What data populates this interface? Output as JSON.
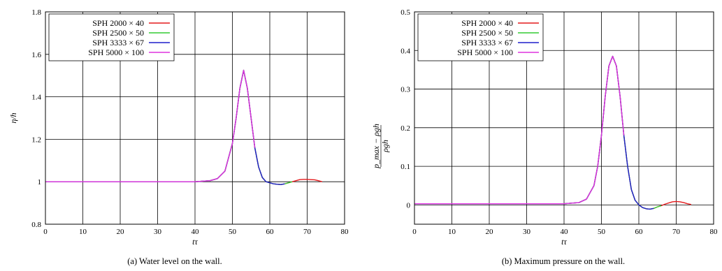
{
  "chart_data": [
    {
      "type": "line",
      "caption": "(a) Water level on the wall.",
      "xlabel": "tτ",
      "ylabel": "η/h",
      "xlim": [
        0,
        80
      ],
      "ylim": [
        0.8,
        1.8
      ],
      "x_ticks": [
        0,
        10,
        20,
        30,
        40,
        50,
        60,
        70,
        80
      ],
      "y_ticks": [
        0.8,
        1,
        1.2,
        1.4,
        1.6,
        1.8
      ],
      "y_tick_labels": [
        "0.8",
        "1",
        "1.2",
        "1.4",
        "1.6",
        "1.8"
      ],
      "grid": true,
      "legend_position": "top-left",
      "series": [
        {
          "name": "SPH 2000 × 40",
          "color": "#e41a1c",
          "x": [
            0,
            5,
            10,
            20,
            30,
            40,
            44,
            46,
            48,
            50,
            51,
            52,
            53,
            54,
            55,
            56,
            57,
            58,
            59,
            60,
            61,
            62,
            63,
            64,
            65,
            66,
            67,
            68,
            69,
            70,
            71,
            72,
            73,
            74
          ],
          "y": [
            1.0,
            1.0,
            1.0,
            1.0,
            1.0,
            1.0,
            1.005,
            1.015,
            1.05,
            1.18,
            1.3,
            1.44,
            1.525,
            1.44,
            1.3,
            1.16,
            1.07,
            1.02,
            1.0,
            0.995,
            0.99,
            0.988,
            0.987,
            0.99,
            0.995,
            1.0,
            1.005,
            1.01,
            1.011,
            1.011,
            1.01,
            1.009,
            1.005,
            1.0
          ]
        },
        {
          "name": "SPH 2500 × 50",
          "color": "#33cc33",
          "x": [
            0,
            5,
            10,
            20,
            30,
            40,
            44,
            46,
            48,
            50,
            51,
            52,
            53,
            54,
            55,
            56,
            57,
            58,
            59,
            60,
            61,
            62,
            63,
            64,
            65,
            66
          ],
          "y": [
            1.0,
            1.0,
            1.0,
            1.0,
            1.0,
            1.0,
            1.005,
            1.015,
            1.05,
            1.18,
            1.3,
            1.44,
            1.525,
            1.44,
            1.3,
            1.16,
            1.07,
            1.02,
            1.0,
            0.995,
            0.99,
            0.988,
            0.987,
            0.99,
            0.995,
            1.0
          ]
        },
        {
          "name": "SPH 3333 × 67",
          "color": "#1f1fcc",
          "x": [
            0,
            5,
            10,
            20,
            30,
            40,
            44,
            46,
            48,
            50,
            51,
            52,
            53,
            54,
            55,
            56,
            57,
            58,
            59,
            60,
            61,
            62,
            63,
            64
          ],
          "y": [
            1.0,
            1.0,
            1.0,
            1.0,
            1.0,
            1.0,
            1.005,
            1.015,
            1.05,
            1.18,
            1.3,
            1.44,
            1.525,
            1.44,
            1.3,
            1.16,
            1.07,
            1.02,
            1.0,
            0.995,
            0.99,
            0.988,
            0.987,
            0.99
          ]
        },
        {
          "name": "SPH 5000 × 100",
          "color": "#dd33dd",
          "x": [
            0,
            5,
            10,
            20,
            30,
            40,
            44,
            46,
            48,
            50,
            51,
            52,
            53,
            54,
            55,
            56
          ],
          "y": [
            1.0,
            1.0,
            1.0,
            1.0,
            1.0,
            1.0,
            1.005,
            1.015,
            1.05,
            1.18,
            1.3,
            1.44,
            1.525,
            1.44,
            1.3,
            1.16
          ]
        }
      ]
    },
    {
      "type": "line",
      "caption": "(b) Maximum pressure on the wall.",
      "xlabel": "tτ",
      "ylabel": "(p_max − ρgh)/ρgh",
      "ylabel_num": "p_max − ρgh",
      "ylabel_den": "ρgh",
      "xlim": [
        0,
        80
      ],
      "ylim": [
        -0.05,
        0.5
      ],
      "x_ticks": [
        0,
        10,
        20,
        30,
        40,
        50,
        60,
        70,
        80
      ],
      "y_ticks": [
        0,
        0.1,
        0.2,
        0.3,
        0.4,
        0.5
      ],
      "y_tick_labels": [
        "0",
        "0.1",
        "0.2",
        "0.3",
        "0.4",
        "0.5"
      ],
      "grid": true,
      "legend_position": "top-left",
      "series": [
        {
          "name": "SPH 2000 × 40",
          "color": "#e41a1c",
          "x": [
            0,
            10,
            20,
            30,
            40,
            44,
            46,
            48,
            49,
            50,
            51,
            52,
            53,
            54,
            55,
            56,
            57,
            58,
            59,
            60,
            61,
            62,
            63,
            64,
            65,
            66,
            67,
            68,
            69,
            70,
            71,
            72,
            73,
            74
          ],
          "y": [
            0.003,
            0.003,
            0.003,
            0.003,
            0.003,
            0.006,
            0.015,
            0.05,
            0.1,
            0.18,
            0.28,
            0.36,
            0.385,
            0.36,
            0.28,
            0.18,
            0.1,
            0.04,
            0.012,
            0.0,
            -0.007,
            -0.01,
            -0.011,
            -0.009,
            -0.005,
            -0.002,
            0.002,
            0.005,
            0.008,
            0.009,
            0.008,
            0.006,
            0.003,
            0.001
          ]
        },
        {
          "name": "SPH 2500 × 50",
          "color": "#33cc33",
          "x": [
            0,
            10,
            20,
            30,
            40,
            44,
            46,
            48,
            49,
            50,
            51,
            52,
            53,
            54,
            55,
            56,
            57,
            58,
            59,
            60,
            61,
            62,
            63,
            64,
            65,
            66
          ],
          "y": [
            0.003,
            0.003,
            0.003,
            0.003,
            0.003,
            0.006,
            0.015,
            0.05,
            0.1,
            0.18,
            0.28,
            0.36,
            0.385,
            0.36,
            0.28,
            0.18,
            0.1,
            0.04,
            0.012,
            0.0,
            -0.007,
            -0.01,
            -0.011,
            -0.009,
            -0.005,
            -0.002
          ]
        },
        {
          "name": "SPH 3333 × 67",
          "color": "#1f1fcc",
          "x": [
            0,
            10,
            20,
            30,
            40,
            44,
            46,
            48,
            49,
            50,
            51,
            52,
            53,
            54,
            55,
            56,
            57,
            58,
            59,
            60,
            61,
            62,
            63,
            64
          ],
          "y": [
            0.003,
            0.003,
            0.003,
            0.003,
            0.003,
            0.006,
            0.015,
            0.05,
            0.1,
            0.18,
            0.28,
            0.36,
            0.385,
            0.36,
            0.28,
            0.18,
            0.1,
            0.04,
            0.012,
            0.0,
            -0.007,
            -0.01,
            -0.011,
            -0.009
          ]
        },
        {
          "name": "SPH 5000 × 100",
          "color": "#dd33dd",
          "x": [
            0,
            10,
            20,
            30,
            40,
            44,
            46,
            48,
            49,
            50,
            51,
            52,
            53,
            54,
            55,
            56
          ],
          "y": [
            0.003,
            0.003,
            0.003,
            0.003,
            0.003,
            0.006,
            0.015,
            0.05,
            0.1,
            0.18,
            0.28,
            0.36,
            0.385,
            0.36,
            0.28,
            0.18
          ]
        }
      ]
    }
  ]
}
